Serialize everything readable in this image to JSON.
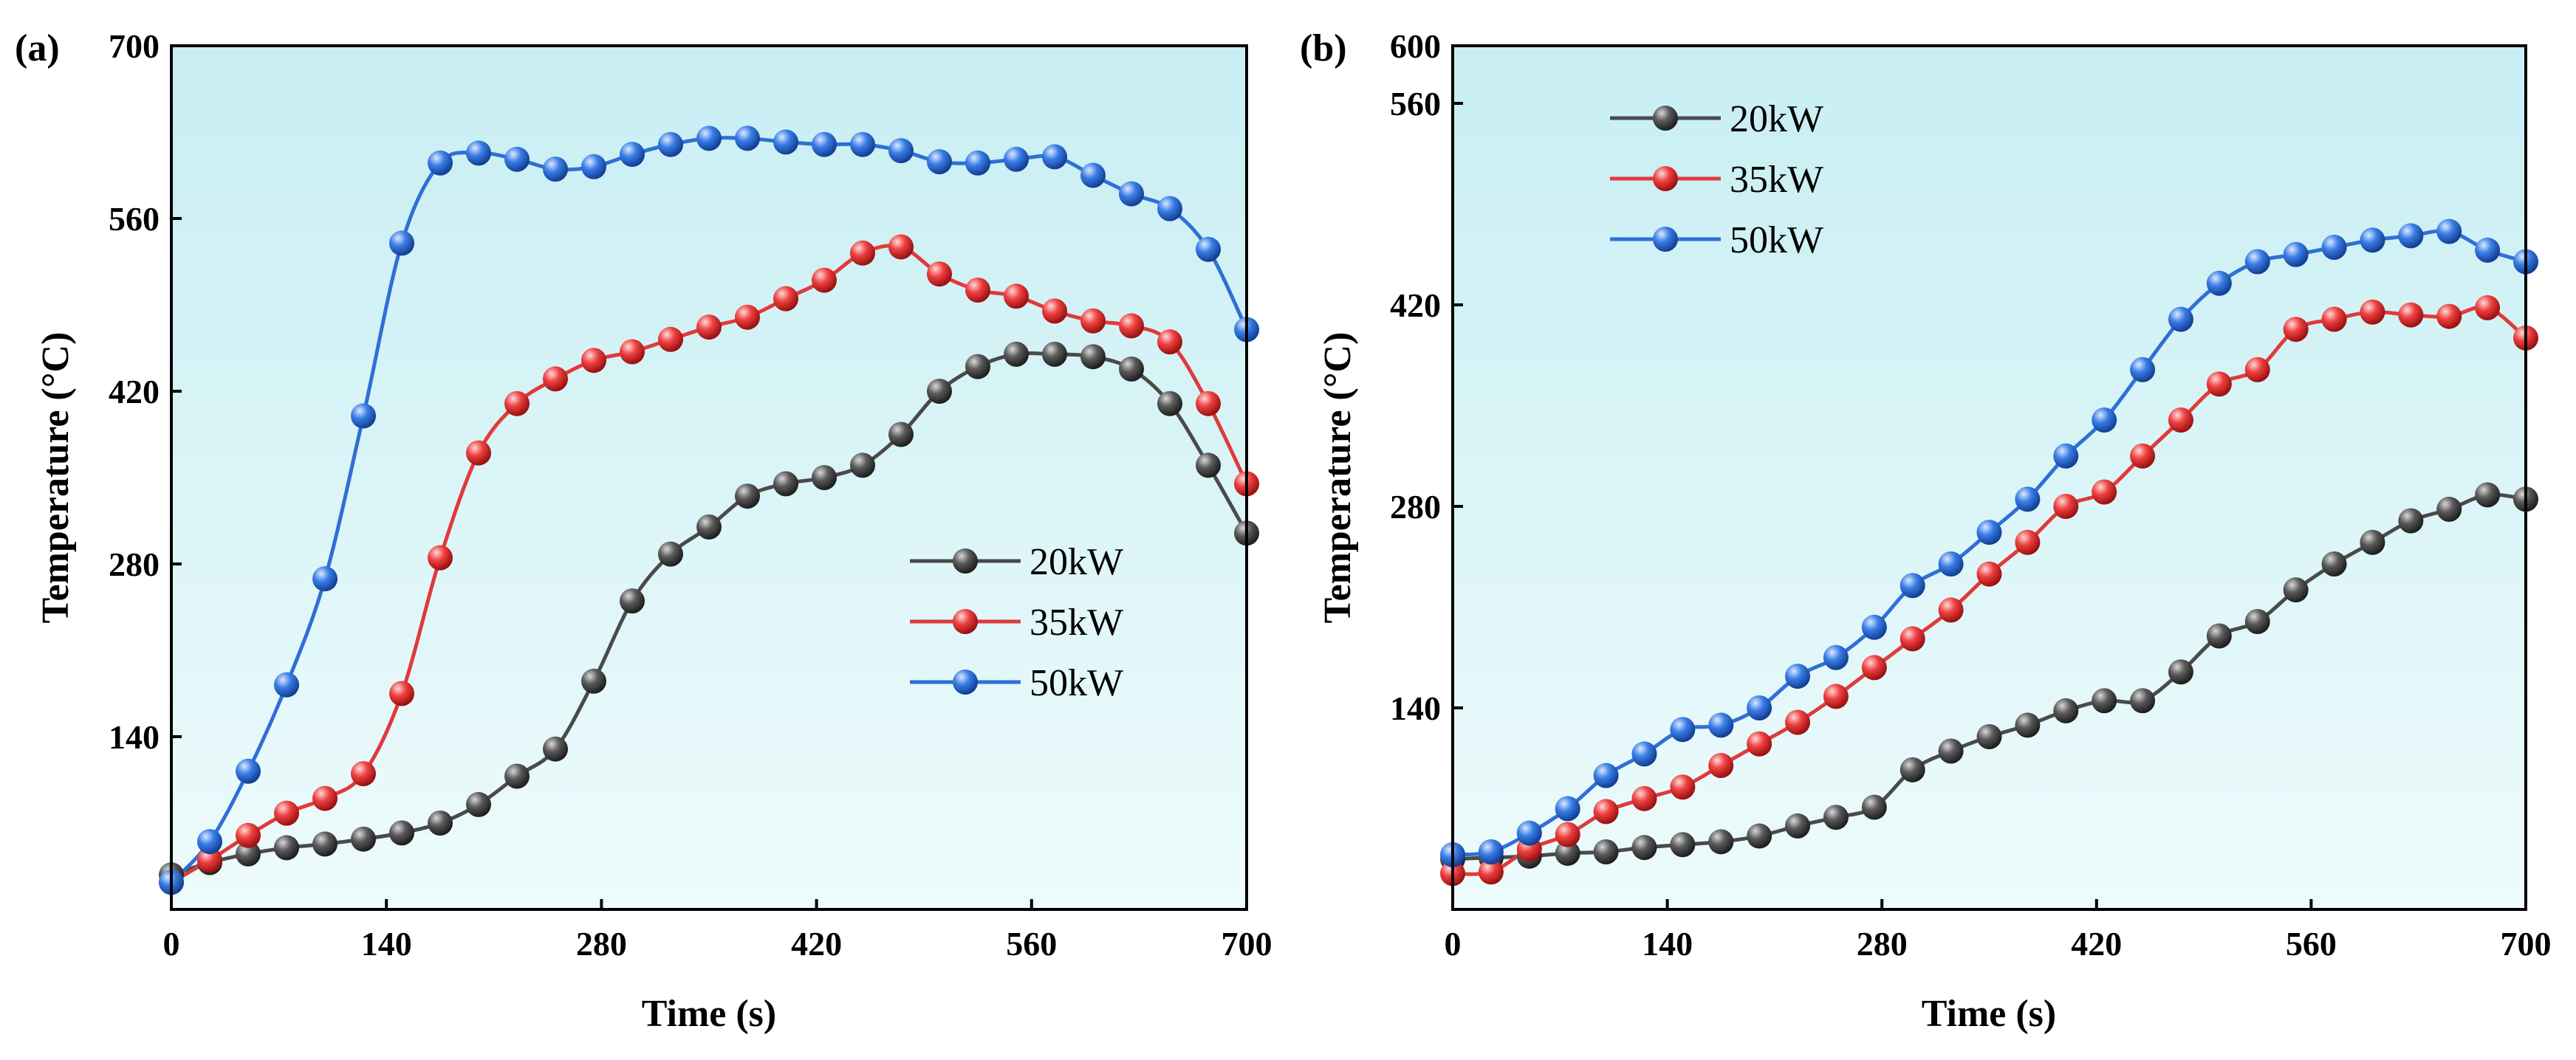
{
  "chart_data": [
    {
      "type": "line",
      "panel_label": "(a)",
      "xlabel": "Time (s)",
      "ylabel": "Temperature (°C)",
      "xlim": [
        0,
        700
      ],
      "ylim": [
        0,
        700
      ],
      "xticks": [
        0,
        140,
        280,
        420,
        560,
        700
      ],
      "yticks": [
        140,
        280,
        420,
        560,
        700
      ],
      "legend_position": "center-right",
      "series": [
        {
          "name": "20kW",
          "color": "#4a4a4a",
          "x": [
            0,
            25,
            50,
            75,
            100,
            125,
            150,
            175,
            200,
            225,
            250,
            275,
            300,
            325,
            350,
            375,
            400,
            425,
            450,
            475,
            500,
            525,
            550,
            575,
            600,
            625,
            650,
            675,
            700
          ],
          "y": [
            28,
            38,
            45,
            50,
            53,
            57,
            62,
            70,
            85,
            108,
            130,
            185,
            250,
            288,
            310,
            335,
            345,
            350,
            360,
            385,
            420,
            440,
            450,
            450,
            448,
            438,
            410,
            360,
            305
          ]
        },
        {
          "name": "35kW",
          "color": "#e03a3a",
          "x": [
            0,
            25,
            50,
            75,
            100,
            125,
            150,
            175,
            200,
            225,
            250,
            275,
            300,
            325,
            350,
            375,
            400,
            425,
            450,
            475,
            500,
            525,
            550,
            575,
            600,
            625,
            650,
            675,
            700
          ],
          "y": [
            22,
            40,
            60,
            78,
            90,
            110,
            175,
            285,
            370,
            410,
            430,
            445,
            452,
            462,
            472,
            480,
            495,
            510,
            532,
            537,
            515,
            502,
            497,
            485,
            477,
            473,
            460,
            410,
            345
          ]
        },
        {
          "name": "50kW",
          "color": "#2f6fd6",
          "x": [
            0,
            25,
            50,
            75,
            100,
            125,
            150,
            175,
            200,
            225,
            250,
            275,
            300,
            325,
            350,
            375,
            400,
            425,
            450,
            475,
            500,
            525,
            550,
            575,
            600,
            625,
            650,
            675,
            700
          ],
          "y": [
            22,
            55,
            112,
            182,
            268,
            400,
            540,
            605,
            613,
            608,
            600,
            602,
            612,
            620,
            625,
            625,
            622,
            620,
            620,
            615,
            606,
            605,
            608,
            610,
            595,
            580,
            568,
            535,
            470
          ]
        }
      ]
    },
    {
      "type": "line",
      "panel_label": "(b)",
      "xlabel": "Time (s)",
      "ylabel": "Temperature (°C)",
      "xlim": [
        0,
        700
      ],
      "ylim": [
        0,
        600
      ],
      "xticks": [
        0,
        140,
        280,
        420,
        560,
        700
      ],
      "yticks": [
        140,
        280,
        420,
        560,
        600
      ],
      "legend_position": "top-left",
      "series": [
        {
          "name": "20kW",
          "color": "#4a4a4a",
          "x": [
            0,
            25,
            50,
            75,
            100,
            125,
            150,
            175,
            200,
            225,
            250,
            275,
            300,
            325,
            350,
            375,
            400,
            425,
            450,
            475,
            500,
            525,
            550,
            575,
            600,
            625,
            650,
            675,
            700
          ],
          "y": [
            35,
            36,
            37,
            39,
            40,
            43,
            45,
            47,
            51,
            58,
            64,
            71,
            97,
            110,
            120,
            128,
            138,
            145,
            145,
            165,
            190,
            200,
            222,
            240,
            255,
            270,
            278,
            288,
            285
          ]
        },
        {
          "name": "35kW",
          "color": "#e03a3a",
          "x": [
            0,
            25,
            50,
            75,
            100,
            125,
            150,
            175,
            200,
            225,
            250,
            275,
            300,
            325,
            350,
            375,
            400,
            425,
            450,
            475,
            500,
            525,
            550,
            575,
            600,
            625,
            650,
            675,
            700
          ],
          "y": [
            25,
            26,
            42,
            52,
            68,
            77,
            85,
            100,
            115,
            130,
            148,
            168,
            188,
            208,
            233,
            255,
            280,
            290,
            315,
            340,
            365,
            375,
            403,
            410,
            415,
            413,
            412,
            418,
            397
          ]
        },
        {
          "name": "50kW",
          "color": "#2f6fd6",
          "x": [
            0,
            25,
            50,
            75,
            100,
            125,
            150,
            175,
            200,
            225,
            250,
            275,
            300,
            325,
            350,
            375,
            400,
            425,
            450,
            475,
            500,
            525,
            550,
            575,
            600,
            625,
            650,
            675,
            700
          ],
          "y": [
            38,
            40,
            53,
            70,
            93,
            108,
            125,
            128,
            140,
            162,
            175,
            196,
            225,
            240,
            262,
            285,
            315,
            340,
            375,
            410,
            435,
            450,
            455,
            460,
            465,
            468,
            471,
            458,
            450
          ]
        }
      ]
    }
  ]
}
